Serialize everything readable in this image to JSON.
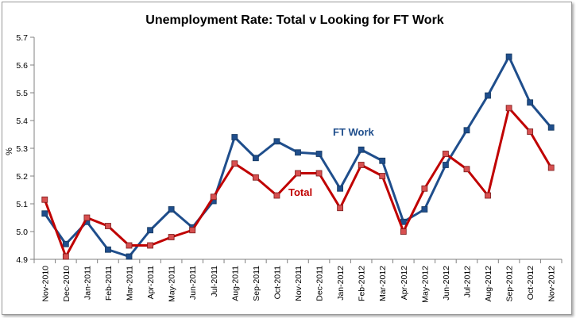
{
  "chart_data": {
    "type": "line",
    "title": "Unemployment Rate: Total v Looking for FT Work",
    "ylabel": "%",
    "xlabel": "",
    "ylim": [
      4.9,
      5.7
    ],
    "yticks": [
      "4.9",
      "5.0",
      "5.1",
      "5.2",
      "5.3",
      "5.4",
      "5.5",
      "5.6",
      "5.7"
    ],
    "grid": false,
    "legend": "none (inline labels)",
    "categories": [
      "Nov-2010",
      "Dec-2010",
      "Jan-2011",
      "Feb-2011",
      "Mar-2011",
      "Apr-2011",
      "May-2011",
      "Jun-2011",
      "Jul-2011",
      "Aug-2011",
      "Sep-2011",
      "Oct-2011",
      "Nov-2011",
      "Dec-2011",
      "Jan-2012",
      "Feb-2012",
      "Mar-2012",
      "Apr-2012",
      "May-2012",
      "Jun-2012",
      "Jul-2012",
      "Aug-2012",
      "Sep-2012",
      "Oct-2012",
      "Nov-2012"
    ],
    "series": [
      {
        "name": "FT Work",
        "color": "#1f4e8c",
        "values": [
          5.065,
          4.955,
          5.035,
          4.935,
          4.91,
          5.005,
          5.08,
          5.015,
          5.11,
          5.34,
          5.265,
          5.325,
          5.285,
          5.28,
          5.155,
          5.295,
          5.255,
          5.035,
          5.08,
          5.24,
          5.365,
          5.49,
          5.63,
          5.465,
          5.375
        ]
      },
      {
        "name": "Total",
        "color": "#c00000",
        "values": [
          5.115,
          4.91,
          5.05,
          5.02,
          4.95,
          4.95,
          4.98,
          5.005,
          5.125,
          5.245,
          5.195,
          5.13,
          5.21,
          5.21,
          5.085,
          5.24,
          5.2,
          5.0,
          5.155,
          5.28,
          5.225,
          5.13,
          5.445,
          5.36,
          5.23
        ]
      }
    ]
  }
}
